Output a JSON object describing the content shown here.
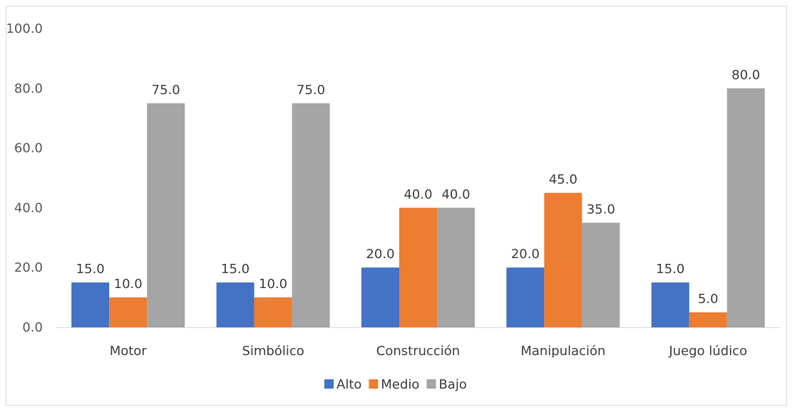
{
  "chart_data": {
    "type": "bar",
    "categories": [
      "Motor",
      "Simbólico",
      "Construcción",
      "Manipulación",
      "Juego lúdico"
    ],
    "series": [
      {
        "name": "Alto",
        "color": "#4472c4",
        "values": [
          15.0,
          15.0,
          20.0,
          20.0,
          15.0
        ]
      },
      {
        "name": "Medio",
        "color": "#ed7d31",
        "values": [
          10.0,
          10.0,
          40.0,
          45.0,
          5.0
        ]
      },
      {
        "name": "Bajo",
        "color": "#a5a5a5",
        "values": [
          75.0,
          75.0,
          40.0,
          35.0,
          80.0
        ]
      }
    ],
    "ylim": [
      0,
      100
    ],
    "yticks": [
      "0.0",
      "20.0",
      "40.0",
      "60.0",
      "80.0",
      "100.0"
    ],
    "grid": false,
    "legend": "bottom",
    "data_labels": true
  }
}
